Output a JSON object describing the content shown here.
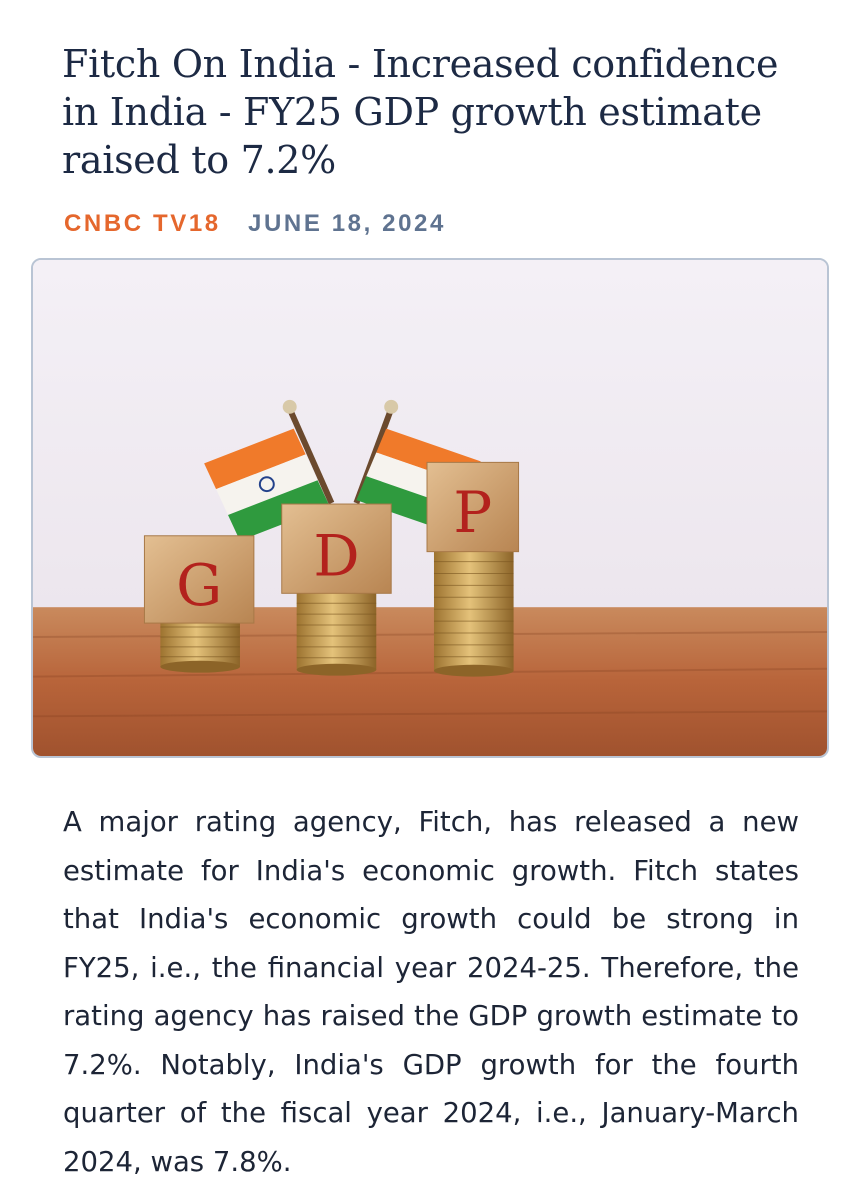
{
  "article": {
    "title": "Fitch On India - Increased confidence in India - FY25 GDP growth estimate raised to 7.2%",
    "source": "CNBC TV18",
    "date": "JUNE 18, 2024",
    "body": "A major rating agency, Fitch, has released a new estimate for India's economic growth. Fitch states that India's economic growth could be strong in FY25, i.e., the financial year 2024-25. Therefore, the rating agency has raised the GDP growth estimate to 7.2%. Notably, India's GDP growth for the fourth quarter of the fiscal year 2024, i.e., January-March 2024, was 7.8%."
  },
  "image": {
    "letters": [
      "G",
      "D",
      "P"
    ],
    "colors": {
      "saffron": "#f07a2a",
      "white": "#f6f3ee",
      "green": "#2f9a3e",
      "letter": "#b3221d",
      "wood": "#c48a58",
      "coin": "#c99a45"
    }
  },
  "theme": {
    "title_color": "#1d2a44",
    "source_color": "#e5672d",
    "date_color": "#5f7390",
    "body_color": "#1d2536"
  }
}
